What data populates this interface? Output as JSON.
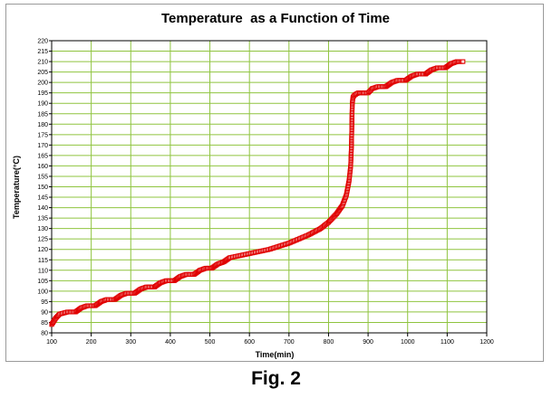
{
  "figure": {
    "caption": "Fig. 2"
  },
  "chart_data": {
    "type": "scatter",
    "title": "Temperature  as a Function of Time",
    "xlabel": "Time(min)",
    "ylabel": "Temperature(°C)",
    "xlim": [
      100,
      1200
    ],
    "ylim": [
      80,
      220
    ],
    "xticks": [
      100,
      200,
      300,
      400,
      500,
      600,
      700,
      800,
      900,
      1000,
      1100,
      1200
    ],
    "yticks": [
      80,
      85,
      90,
      95,
      100,
      105,
      110,
      115,
      120,
      125,
      130,
      135,
      140,
      145,
      150,
      155,
      160,
      165,
      170,
      175,
      180,
      185,
      190,
      195,
      200,
      205,
      210,
      215,
      220
    ],
    "grid": true,
    "legend": "none",
    "colors": {
      "series": "#e00000",
      "grid": "#8fc43f",
      "axis": "#000000"
    },
    "series": [
      {
        "marker": "open-square",
        "points": [
          [
            100,
            84
          ],
          [
            110,
            87
          ],
          [
            120,
            89
          ],
          [
            140,
            90
          ],
          [
            160,
            90
          ],
          [
            175,
            92
          ],
          [
            190,
            93
          ],
          [
            210,
            93
          ],
          [
            225,
            95
          ],
          [
            240,
            96
          ],
          [
            260,
            96
          ],
          [
            275,
            98
          ],
          [
            290,
            99
          ],
          [
            310,
            99
          ],
          [
            325,
            101
          ],
          [
            340,
            102
          ],
          [
            360,
            102
          ],
          [
            375,
            104
          ],
          [
            390,
            105
          ],
          [
            410,
            105
          ],
          [
            425,
            107
          ],
          [
            440,
            108
          ],
          [
            460,
            108
          ],
          [
            475,
            110
          ],
          [
            490,
            111
          ],
          [
            505,
            111
          ],
          [
            520,
            113
          ],
          [
            535,
            114
          ],
          [
            550,
            116
          ],
          [
            600,
            118
          ],
          [
            650,
            120
          ],
          [
            700,
            123
          ],
          [
            750,
            127
          ],
          [
            780,
            130
          ],
          [
            800,
            133
          ],
          [
            820,
            137
          ],
          [
            835,
            141
          ],
          [
            845,
            146
          ],
          [
            852,
            153
          ],
          [
            856,
            160
          ],
          [
            858,
            170
          ],
          [
            859,
            180
          ],
          [
            860,
            190
          ],
          [
            862,
            193
          ],
          [
            866,
            194
          ],
          [
            875,
            195
          ],
          [
            890,
            195
          ],
          [
            900,
            195
          ],
          [
            910,
            197
          ],
          [
            925,
            198
          ],
          [
            945,
            198
          ],
          [
            960,
            200
          ],
          [
            975,
            201
          ],
          [
            995,
            201
          ],
          [
            1010,
            203
          ],
          [
            1025,
            204
          ],
          [
            1045,
            204
          ],
          [
            1060,
            206
          ],
          [
            1075,
            207
          ],
          [
            1095,
            207
          ],
          [
            1110,
            209
          ],
          [
            1125,
            210
          ],
          [
            1140,
            210
          ]
        ]
      }
    ]
  }
}
